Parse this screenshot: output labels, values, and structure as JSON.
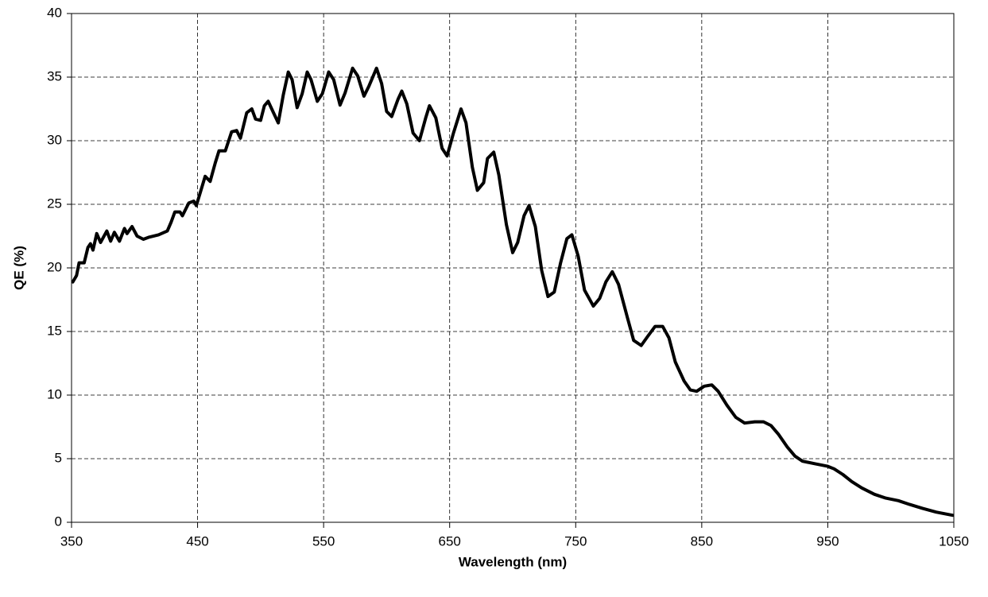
{
  "chart_data": {
    "type": "line",
    "xlabel": "Wavelength (nm)",
    "ylabel": "QE (%)",
    "xlim": [
      350,
      1050
    ],
    "xticks": [
      350,
      450,
      550,
      650,
      750,
      850,
      950,
      1050
    ],
    "ylim": [
      0,
      40
    ],
    "yticks": [
      0,
      5,
      10,
      15,
      20,
      25,
      30,
      35,
      40
    ],
    "grid": true,
    "series": [
      {
        "color": "#000000",
        "x": [
          351,
          354,
          356,
          360,
          363,
          365,
          367,
          370,
          373,
          378,
          381,
          384,
          388,
          392,
          394,
          398,
          402,
          407,
          411,
          419,
          426,
          429,
          432,
          436,
          438,
          443,
          447,
          449,
          453,
          456,
          460,
          464,
          467,
          472,
          477,
          481,
          484,
          489,
          493,
          496,
          500,
          503,
          506,
          510,
          514,
          518,
          522,
          525,
          529,
          533,
          537,
          540,
          545,
          549,
          554,
          558,
          563,
          567,
          573,
          577,
          582,
          586,
          592,
          596,
          600,
          604,
          609,
          612,
          616,
          621,
          626,
          631,
          634,
          639,
          644,
          648,
          653,
          659,
          663,
          668,
          672,
          677,
          680,
          685,
          689,
          695,
          700,
          704,
          709,
          713,
          718,
          723,
          728,
          733,
          738,
          743,
          747,
          752,
          757,
          764,
          769,
          774,
          779,
          784,
          791,
          796,
          802,
          807,
          813,
          819,
          824,
          829,
          836,
          841,
          846,
          852,
          858,
          863,
          870,
          877,
          884,
          892,
          899,
          905,
          911,
          918,
          924,
          930,
          940,
          950,
          955,
          962,
          969,
          977,
          987,
          996,
          1006,
          1015,
          1025,
          1036,
          1049
        ],
        "values": [
          18.9,
          19.4,
          20.4,
          20.4,
          21.6,
          21.9,
          21.4,
          22.7,
          22.0,
          22.9,
          22.1,
          22.8,
          22.1,
          23.1,
          22.7,
          23.25,
          22.5,
          22.25,
          22.4,
          22.6,
          22.9,
          23.6,
          24.4,
          24.4,
          24.1,
          25.1,
          25.25,
          24.9,
          26.2,
          27.2,
          26.8,
          28.25,
          29.2,
          29.2,
          30.7,
          30.8,
          30.2,
          32.2,
          32.5,
          31.7,
          31.6,
          32.75,
          33.1,
          32.25,
          31.4,
          33.6,
          35.4,
          34.8,
          32.6,
          33.7,
          35.4,
          34.8,
          33.1,
          33.7,
          35.4,
          34.8,
          32.8,
          33.75,
          35.7,
          35.1,
          33.5,
          34.3,
          35.7,
          34.5,
          32.3,
          31.9,
          33.25,
          33.9,
          32.9,
          30.6,
          30.0,
          31.8,
          32.75,
          31.8,
          29.4,
          28.8,
          30.6,
          32.5,
          31.4,
          27.9,
          26.1,
          26.7,
          28.6,
          29.1,
          27.3,
          23.4,
          21.2,
          22.0,
          24.1,
          24.9,
          23.25,
          19.8,
          17.75,
          18.1,
          20.4,
          22.3,
          22.6,
          20.9,
          18.25,
          17.0,
          17.6,
          18.9,
          19.7,
          18.7,
          16.1,
          14.3,
          13.9,
          14.6,
          15.4,
          15.4,
          14.5,
          12.6,
          11.1,
          10.4,
          10.3,
          10.7,
          10.8,
          10.3,
          9.2,
          8.25,
          7.8,
          7.9,
          7.9,
          7.6,
          6.9,
          5.9,
          5.2,
          4.8,
          4.6,
          4.4,
          4.2,
          3.75,
          3.2,
          2.7,
          2.2,
          1.9,
          1.7,
          1.4,
          1.1,
          0.8,
          0.55
        ]
      }
    ]
  }
}
